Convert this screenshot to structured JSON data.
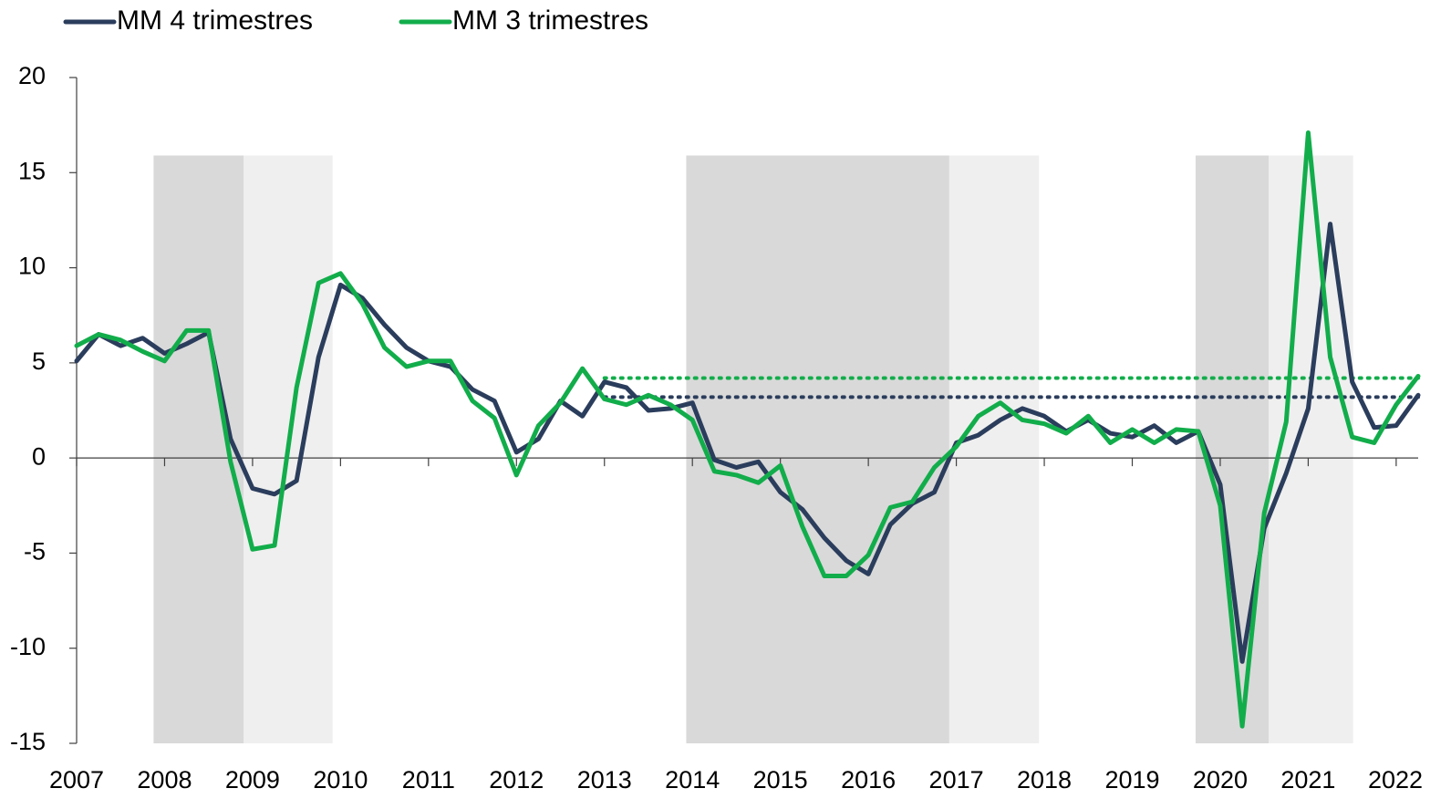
{
  "chart_data": {
    "type": "line",
    "x": [
      2007,
      2007.25,
      2007.5,
      2007.75,
      2008,
      2008.25,
      2008.5,
      2008.75,
      2009,
      2009.25,
      2009.5,
      2009.75,
      2010,
      2010.25,
      2010.5,
      2010.75,
      2011,
      2011.25,
      2011.5,
      2011.75,
      2012,
      2012.25,
      2012.5,
      2012.75,
      2013,
      2013.25,
      2013.5,
      2013.75,
      2014,
      2014.25,
      2014.5,
      2014.75,
      2015,
      2015.25,
      2015.5,
      2015.75,
      2016,
      2016.25,
      2016.5,
      2016.75,
      2017,
      2017.25,
      2017.5,
      2017.75,
      2018,
      2018.25,
      2018.5,
      2018.75,
      2019,
      2019.25,
      2019.5,
      2019.75,
      2020,
      2020.25,
      2020.5,
      2020.75,
      2021,
      2021.25,
      2021.5,
      2021.75,
      2022,
      2022.25
    ],
    "series": [
      {
        "name": "MM 4 trimestres",
        "color": "#2b3d5c",
        "values": [
          5.1,
          6.5,
          5.9,
          6.3,
          5.5,
          6.0,
          6.6,
          1.0,
          -1.6,
          -1.9,
          -1.2,
          5.3,
          9.1,
          8.4,
          7.0,
          5.8,
          5.1,
          4.8,
          3.6,
          3.0,
          0.3,
          1.0,
          3.0,
          2.2,
          4.0,
          3.7,
          2.5,
          2.6,
          2.9,
          -0.1,
          -0.5,
          -0.2,
          -1.8,
          -2.7,
          -4.2,
          -5.4,
          -6.1,
          -3.5,
          -2.4,
          -1.8,
          0.8,
          1.2,
          2.0,
          2.6,
          2.2,
          1.4,
          2.0,
          1.3,
          1.1,
          1.7,
          0.8,
          1.4,
          -1.4,
          -10.7,
          -3.7,
          -0.8,
          2.6,
          12.3,
          4.0,
          1.6,
          1.7,
          3.3
        ]
      },
      {
        "name": "MM 3 trimestres",
        "color": "#12ad4b",
        "values": [
          5.9,
          6.5,
          6.2,
          5.6,
          5.1,
          6.7,
          6.7,
          -0.2,
          -4.8,
          -4.6,
          3.7,
          9.2,
          9.7,
          8.1,
          5.8,
          4.8,
          5.1,
          5.1,
          3.0,
          2.1,
          -0.9,
          1.7,
          2.9,
          4.7,
          3.1,
          2.8,
          3.3,
          2.8,
          2.0,
          -0.7,
          -0.9,
          -1.3,
          -0.4,
          -3.6,
          -6.2,
          -6.2,
          -5.1,
          -2.6,
          -2.3,
          -0.5,
          0.6,
          2.2,
          2.9,
          2.0,
          1.8,
          1.3,
          2.2,
          0.8,
          1.5,
          0.8,
          1.5,
          1.4,
          -2.5,
          -14.1,
          -2.9,
          1.9,
          17.1,
          5.3,
          1.1,
          0.8,
          2.8,
          4.3
        ]
      }
    ],
    "reference_lines": [
      {
        "value": 3.2,
        "from": 2013,
        "color": "#2b3d5c"
      },
      {
        "value": 4.2,
        "from": 2013,
        "color": "#12ad4b"
      }
    ],
    "shaded_periods": [
      {
        "start": 2007.875,
        "end": 2008.9,
        "top": 15.9,
        "color": "#d9d9d9"
      },
      {
        "start": 2008.9,
        "end": 2009.91,
        "top": 15.9,
        "color": "#efefef"
      },
      {
        "start": 2013.93,
        "end": 2016.92,
        "top": 15.9,
        "color": "#d9d9d9"
      },
      {
        "start": 2016.92,
        "end": 2017.94,
        "top": 15.9,
        "color": "#efefef"
      },
      {
        "start": 2019.72,
        "end": 2020.55,
        "top": 15.9,
        "color": "#d9d9d9"
      },
      {
        "start": 2020.55,
        "end": 2021.51,
        "top": 15.9,
        "color": "#efefef"
      }
    ],
    "xlim": [
      2007,
      2022.25
    ],
    "xticks": [
      2007,
      2008,
      2009,
      2010,
      2011,
      2012,
      2013,
      2014,
      2015,
      2016,
      2017,
      2018,
      2019,
      2020,
      2021,
      2022
    ],
    "ylim": [
      -15,
      20
    ],
    "yticks": [
      -15,
      -10,
      -5,
      0,
      5,
      10,
      15,
      20
    ],
    "legend": "top-left"
  }
}
